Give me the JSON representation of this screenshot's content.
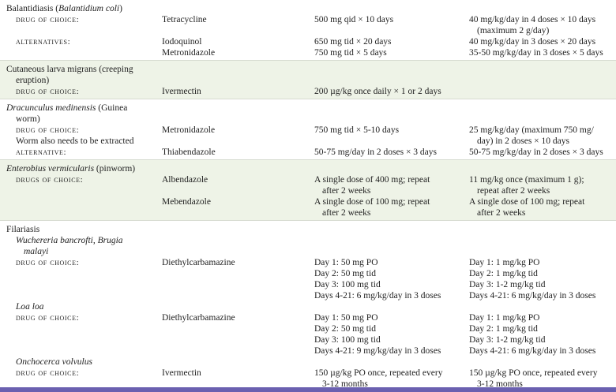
{
  "colors": {
    "shaded_band": "#eef3e7",
    "bottom_bar": "#6b60b0",
    "separator": "#d6dbd0"
  },
  "sections": [
    {
      "shaded": false,
      "rows": [
        {
          "label": [
            {
              "t": "Balantidiasis ("
            },
            {
              "t": "Balantidium coli",
              "i": true
            },
            {
              "t": ")"
            }
          ]
        },
        {
          "label_sc": "DRUG OF CHOICE:",
          "drug": "Tetracycline",
          "adult": "500 mg qid × 10 days",
          "child": "40 mg/kg/day in 4 doses × 10 days"
        },
        {
          "child": "(maximum 2 g/day)",
          "child_cont": true
        },
        {
          "label_sc": "ALTERNATIVES:",
          "drug": "Iodoquinol",
          "adult": "650 mg tid × 20 days",
          "child": "40 mg/kg/day in 3 doses × 20 days"
        },
        {
          "drug": "Metronidazole",
          "adult": "750 mg tid × 5 days",
          "child": "35-50 mg/kg/day in 3 doses × 5 days"
        }
      ]
    },
    {
      "shaded": true,
      "rows": [
        {
          "label": [
            {
              "t": "Cutaneous larva migrans (creeping"
            }
          ]
        },
        {
          "label": [
            {
              "t": "eruption)"
            }
          ],
          "label_cont": true
        },
        {
          "label_sc": "DRUG OF CHOICE:",
          "drug": "Ivermectin",
          "adult": "200 µg/kg once daily × 1 or 2 days"
        }
      ]
    },
    {
      "shaded": false,
      "rows": [
        {
          "label": [
            {
              "t": "Dracunculus medinensis",
              "i": true
            },
            {
              "t": " (Guinea"
            }
          ]
        },
        {
          "label": [
            {
              "t": "worm)"
            }
          ],
          "label_cont": true
        },
        {
          "label_sc": "DRUG OF CHOICE:",
          "drug": "Metronidazole",
          "adult": "750 mg tid × 5-10 days",
          "child": "25 mg/kg/day (maximum 750 mg/"
        },
        {
          "label": [
            {
              "t": "Worm also needs to be extracted"
            }
          ],
          "label_cont": true,
          "child": "day) in 2 doses × 10 days",
          "child_cont": true
        },
        {
          "label_sc": "ALTERNATIVE:",
          "drug": "Thiabendazole",
          "adult": "50-75 mg/day in 2 doses × 3 days",
          "child": "50-75 mg/kg/day in 2 doses × 3 days"
        }
      ]
    },
    {
      "shaded": true,
      "rows": [
        {
          "label": [
            {
              "t": "Enterobius vermicularis",
              "i": true
            },
            {
              "t": " (pinworm)"
            }
          ]
        },
        {
          "label_sc": "DRUGS OF CHOICE:",
          "drug": "Albendazole",
          "adult": "A single dose of 400 mg; repeat",
          "child": "11 mg/kg once (maximum 1 g);"
        },
        {
          "adult": "after 2 weeks",
          "adult_cont": true,
          "child": "repeat after 2 weeks",
          "child_cont": true
        },
        {
          "drug": "Mebendazole",
          "adult": "A single dose of 100 mg; repeat",
          "child": "A single dose of 100 mg; repeat"
        },
        {
          "adult": "after 2 weeks",
          "adult_cont": true,
          "child": "after 2 weeks",
          "child_cont": true
        }
      ]
    },
    {
      "shaded": false,
      "rows": [
        {
          "label": [
            {
              "t": "Filariasis"
            }
          ]
        },
        {
          "label": [
            {
              "t": "Wuchereria bancrofti, Brugia",
              "i": true
            }
          ],
          "label_cont": true
        },
        {
          "label": [
            {
              "t": "malayi",
              "i": true
            }
          ],
          "label_cont2": true
        },
        {
          "label_sc": "DRUG OF CHOICE:",
          "drug": "Diethylcarbamazine",
          "adult": "Day 1: 50 mg PO",
          "child": "Day 1: 1 mg/kg PO"
        },
        {
          "adult": "Day 2: 50 mg tid",
          "child": "Day 2: 1 mg/kg tid"
        },
        {
          "adult": "Day 3: 100 mg tid",
          "child": "Day 3: 1-2 mg/kg tid"
        },
        {
          "adult": "Days 4-21: 6 mg/kg/day in 3 doses",
          "child": "Days 4-21: 6 mg/kg/day in 3 doses"
        },
        {
          "label": [
            {
              "t": "Loa loa",
              "i": true
            }
          ],
          "label_cont": true
        },
        {
          "label_sc": "DRUG OF CHOICE:",
          "drug": "Diethylcarbamazine",
          "adult": "Day 1: 50 mg PO",
          "child": "Day 1: 1 mg/kg PO"
        },
        {
          "adult": "Day 2: 50 mg tid",
          "child": "Day 2: 1 mg/kg tid"
        },
        {
          "adult": "Day 3: 100 mg tid",
          "child": "Day 3: 1-2 mg/kg tid"
        },
        {
          "adult": "Days 4-21: 9 mg/kg/day in 3 doses",
          "child": "Days 4-21: 6 mg/kg/day in 3 doses"
        },
        {
          "label": [
            {
              "t": "Onchocerca volvulus",
              "i": true
            }
          ],
          "label_cont": true
        },
        {
          "label_sc": "DRUG OF CHOICE:",
          "drug": "Ivermectin",
          "adult": "150 µg/kg PO once, repeated every",
          "child": "150 µg/kg PO once, repeated every"
        },
        {
          "adult": "3-12 months",
          "adult_cont": true,
          "child": "3-12 months",
          "child_cont": true
        }
      ]
    }
  ]
}
